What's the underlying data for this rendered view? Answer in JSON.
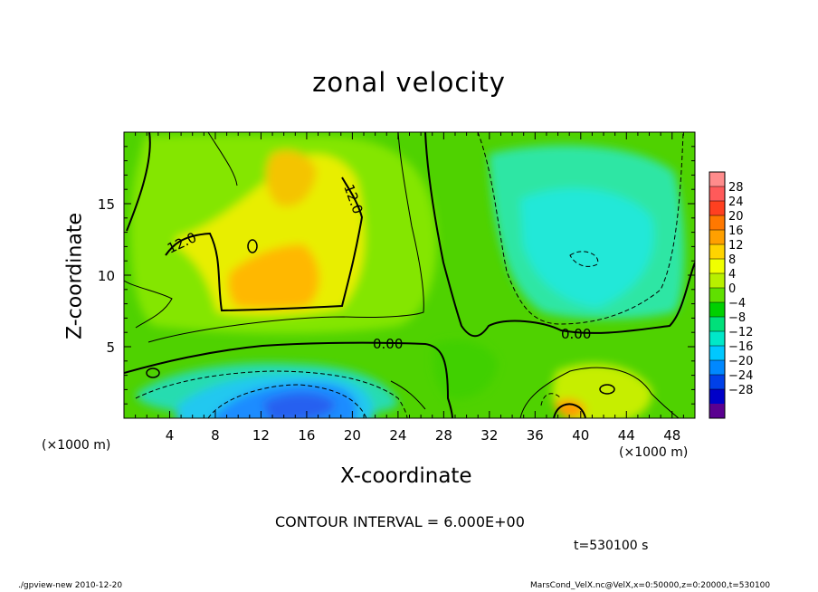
{
  "chart_data": {
    "type": "heatmap",
    "title": "zonal velocity",
    "xlabel": "X-coordinate",
    "ylabel": "Z-coordinate",
    "x_unit_label": "(×1000 m)",
    "xlim": [
      0,
      50
    ],
    "ylim": [
      0,
      20
    ],
    "x_ticks": [
      4,
      8,
      12,
      16,
      20,
      24,
      28,
      32,
      36,
      40,
      44,
      48
    ],
    "y_ticks": [
      5,
      10,
      15
    ],
    "contour_labels": [
      "12.0",
      "12.0",
      "0.00",
      "0.00"
    ],
    "colorbar": {
      "ticks": [
        28,
        24,
        20,
        16,
        12,
        8,
        4,
        0,
        -4,
        -8,
        -12,
        -16,
        -20,
        -24,
        -28
      ],
      "tick_labels": [
        "28",
        "24",
        "20",
        "16",
        "12",
        "8",
        "4",
        "0",
        "−4",
        "−8",
        "−12",
        "−16",
        "−20",
        "−24",
        "−28"
      ],
      "colors": [
        "#ff8c8c",
        "#ff5a5a",
        "#ff4020",
        "#ff7800",
        "#ffa000",
        "#ffd400",
        "#f0ff00",
        "#b8f000",
        "#60e000",
        "#00d000",
        "#00e07a",
        "#00e8c8",
        "#00c8ff",
        "#0088ff",
        "#0040e8",
        "#0000c8",
        "#5a0090"
      ]
    },
    "annotation": "CONTOUR INTERVAL = 6.000E+00",
    "time_label": "t=530100 s"
  },
  "footer": {
    "left": "./gpview-new  2010-12-20",
    "right": "MarsCond_VelX.nc@VelX,x=0:50000,z=0:20000,t=530100"
  }
}
